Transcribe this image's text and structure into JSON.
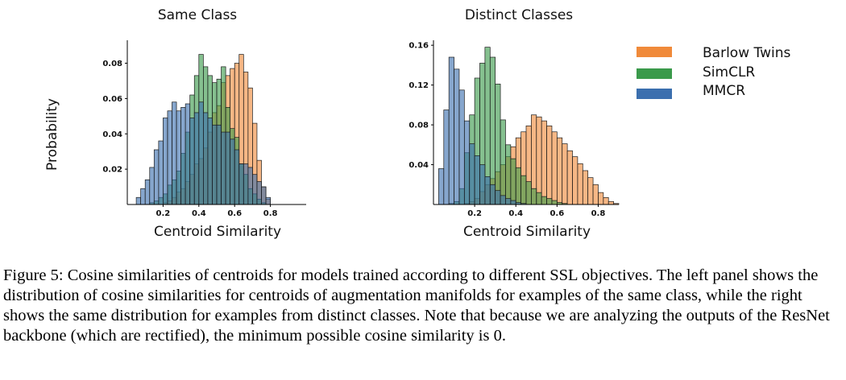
{
  "chart_data": [
    {
      "type": "histogram",
      "title": "Same Class",
      "xlabel": "Centroid Similarity",
      "ylabel": "Probability",
      "xlim": [
        0.0,
        1.0
      ],
      "ylim": [
        0.0,
        0.093
      ],
      "xticks": [
        0.2,
        0.4,
        0.6,
        0.8
      ],
      "xtick_labels": [
        "0.2",
        "0.4",
        "0.6",
        "0.8"
      ],
      "yticks": [
        0.02,
        0.04,
        0.06,
        0.08
      ],
      "ytick_labels": [
        "0.02",
        "0.04",
        "0.06",
        "0.08"
      ],
      "bin_start": 0.05,
      "bin_width": 0.025,
      "series": [
        {
          "name": "MMCR",
          "color": "#3b6fae",
          "values": [
            0.004,
            0.009,
            0.014,
            0.021,
            0.031,
            0.036,
            0.049,
            0.053,
            0.058,
            0.053,
            0.055,
            0.057,
            0.049,
            0.052,
            0.058,
            0.052,
            0.049,
            0.045,
            0.045,
            0.041,
            0.041,
            0.037,
            0.031,
            0.023,
            0.023,
            0.021,
            0.017,
            0.013,
            0.01,
            0.004
          ]
        },
        {
          "name": "SimCLR",
          "color": "#3a9a4b",
          "values": [
            0.0,
            0.0,
            0.0,
            0.001,
            0.002,
            0.004,
            0.006,
            0.011,
            0.014,
            0.019,
            0.029,
            0.041,
            0.062,
            0.073,
            0.085,
            0.078,
            0.073,
            0.069,
            0.071,
            0.078,
            0.055,
            0.043,
            0.038,
            0.023,
            0.017,
            0.009,
            0.006,
            0.003,
            0.001,
            0.0
          ]
        },
        {
          "name": "Barlow Twins",
          "color": "#f08a3a",
          "values": [
            0.0,
            0.0,
            0.0,
            0.0,
            0.0,
            0.0,
            0.001,
            0.002,
            0.004,
            0.007,
            0.009,
            0.013,
            0.017,
            0.023,
            0.026,
            0.032,
            0.041,
            0.052,
            0.056,
            0.069,
            0.073,
            0.077,
            0.08,
            0.085,
            0.075,
            0.066,
            0.046,
            0.025,
            0.01,
            0.003
          ]
        }
      ]
    },
    {
      "type": "histogram",
      "title": "Distinct Classes",
      "xlabel": "Centroid Similarity",
      "ylabel": "",
      "xlim": [
        0.0,
        0.9
      ],
      "ylim": [
        0.0,
        0.165
      ],
      "xticks": [
        0.2,
        0.4,
        0.6,
        0.8
      ],
      "xtick_labels": [
        "0.2",
        "0.4",
        "0.6",
        "0.8"
      ],
      "yticks": [
        0.04,
        0.08,
        0.12,
        0.16
      ],
      "ytick_labels": [
        "0.04",
        "0.08",
        "0.12",
        "0.16"
      ],
      "bin_start": 0.0,
      "bin_width": 0.025,
      "series": [
        {
          "name": "MMCR",
          "color": "#3b6fae",
          "values": [
            0.0,
            0.036,
            0.095,
            0.148,
            0.136,
            0.115,
            0.084,
            0.061,
            0.049,
            0.04,
            0.028,
            0.02,
            0.014,
            0.009,
            0.006,
            0.004,
            0.002,
            0.001,
            0.0,
            0.0,
            0.0,
            0.0,
            0.0,
            0.0,
            0.0,
            0.0,
            0.0,
            0.0,
            0.0,
            0.0,
            0.0,
            0.0,
            0.0,
            0.0,
            0.0,
            0.0
          ]
        },
        {
          "name": "SimCLR",
          "color": "#3a9a4b",
          "values": [
            0.0,
            0.0,
            0.0,
            0.001,
            0.003,
            0.016,
            0.052,
            0.09,
            0.127,
            0.142,
            0.158,
            0.148,
            0.121,
            0.085,
            0.06,
            0.046,
            0.037,
            0.029,
            0.023,
            0.016,
            0.012,
            0.008,
            0.006,
            0.004,
            0.002,
            0.001,
            0.0,
            0.0,
            0.0,
            0.0,
            0.0,
            0.0,
            0.0,
            0.0,
            0.0,
            0.0
          ]
        },
        {
          "name": "Barlow Twins",
          "color": "#f08a3a",
          "values": [
            0.0,
            0.0,
            0.0,
            0.0,
            0.0,
            0.0,
            0.001,
            0.003,
            0.006,
            0.013,
            0.02,
            0.026,
            0.033,
            0.04,
            0.048,
            0.058,
            0.067,
            0.073,
            0.079,
            0.09,
            0.088,
            0.084,
            0.079,
            0.073,
            0.067,
            0.061,
            0.054,
            0.048,
            0.041,
            0.034,
            0.027,
            0.02,
            0.012,
            0.007,
            0.003,
            0.001
          ]
        }
      ]
    }
  ],
  "legend": [
    {
      "label": "Barlow Twins",
      "color": "#f08a3a"
    },
    {
      "label": "SimCLR",
      "color": "#3a9a4b"
    },
    {
      "label": "MMCR",
      "color": "#3b6fae"
    }
  ],
  "caption": {
    "lead": "Figure 5: Cosine similarities of centroids for models trained according to different SSL objectives. The left panel shows the distribution of cosine similarities for centroids of augmentation manifolds for examples of the same class, while the right shows the same distribution for examples from distinct classes. Note that because we are analyzing the outputs of the ResNet backbone (which are rectified), the minimum possible cosine similarity is ",
    "math_value": "0",
    "tail": "."
  }
}
